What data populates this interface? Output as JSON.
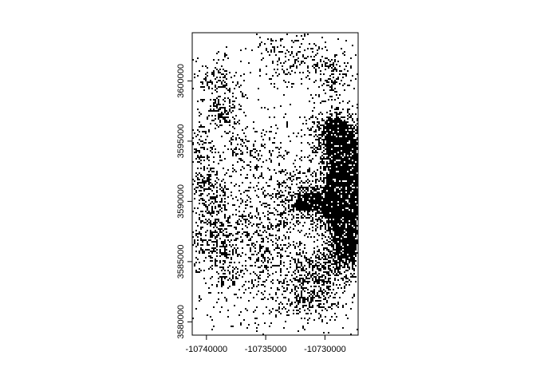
{
  "map": {
    "extent": {
      "x_min": -10741200,
      "x_max": -10727200,
      "y_min": 3578900,
      "y_max": 3604000
    },
    "x_ticks": [
      {
        "value": -10740000,
        "label": "-10740000"
      },
      {
        "value": -10735000,
        "label": "-10735000"
      },
      {
        "value": -10730000,
        "label": "-10730000"
      }
    ],
    "y_ticks": [
      {
        "value": 3580000,
        "label": "3580000"
      },
      {
        "value": 3585000,
        "label": "3585000"
      },
      {
        "value": 3590000,
        "label": "3590000"
      },
      {
        "value": 3595000,
        "label": "3595000"
      },
      {
        "value": 3600000,
        "label": "3600000"
      }
    ],
    "colors": {
      "background": "#ffffff",
      "features": "#000000",
      "axes": "#000000"
    },
    "raster_values": [
      "feature",
      "no-feature"
    ],
    "dense_areas": [
      {
        "x": -10729300,
        "y": 3595500,
        "sx": 1100,
        "sy": 1300,
        "weight": 1.2
      },
      {
        "x": -10728200,
        "y": 3592600,
        "sx": 1000,
        "sy": 2000,
        "weight": 1.4
      },
      {
        "x": -10728800,
        "y": 3590000,
        "sx": 1300,
        "sy": 1500,
        "weight": 1.3
      },
      {
        "x": -10731800,
        "y": 3589900,
        "sx": 900,
        "sy": 800,
        "weight": 0.8
      },
      {
        "x": -10728200,
        "y": 3586300,
        "sx": 1100,
        "sy": 1600,
        "weight": 1.0
      },
      {
        "x": -10730600,
        "y": 3584000,
        "sx": 1300,
        "sy": 1200,
        "weight": 0.7
      },
      {
        "x": -10731400,
        "y": 3581500,
        "sx": 1400,
        "sy": 800,
        "weight": 0.6
      },
      {
        "x": -10738600,
        "y": 3597500,
        "sx": 1000,
        "sy": 800,
        "weight": 0.7
      },
      {
        "x": -10739200,
        "y": 3600200,
        "sx": 900,
        "sy": 800,
        "weight": 0.5
      },
      {
        "x": -10729500,
        "y": 3600500,
        "sx": 800,
        "sy": 1000,
        "weight": 0.5
      },
      {
        "x": -10736500,
        "y": 3594500,
        "sx": 1200,
        "sy": 800,
        "weight": 0.4
      },
      {
        "x": -10739800,
        "y": 3590500,
        "sx": 1000,
        "sy": 2200,
        "weight": 0.45
      },
      {
        "x": -10739200,
        "y": 3586000,
        "sx": 1200,
        "sy": 2000,
        "weight": 0.45
      },
      {
        "x": -10735000,
        "y": 3585000,
        "sx": 2000,
        "sy": 2500,
        "weight": 0.3
      },
      {
        "x": -10734000,
        "y": 3590000,
        "sx": 2500,
        "sy": 2500,
        "weight": 0.25
      },
      {
        "x": -10733000,
        "y": 3602000,
        "sx": 1800,
        "sy": 1500,
        "weight": 0.3
      },
      {
        "x": -10740500,
        "y": 3595000,
        "sx": 600,
        "sy": 900,
        "weight": 0.35
      }
    ]
  }
}
